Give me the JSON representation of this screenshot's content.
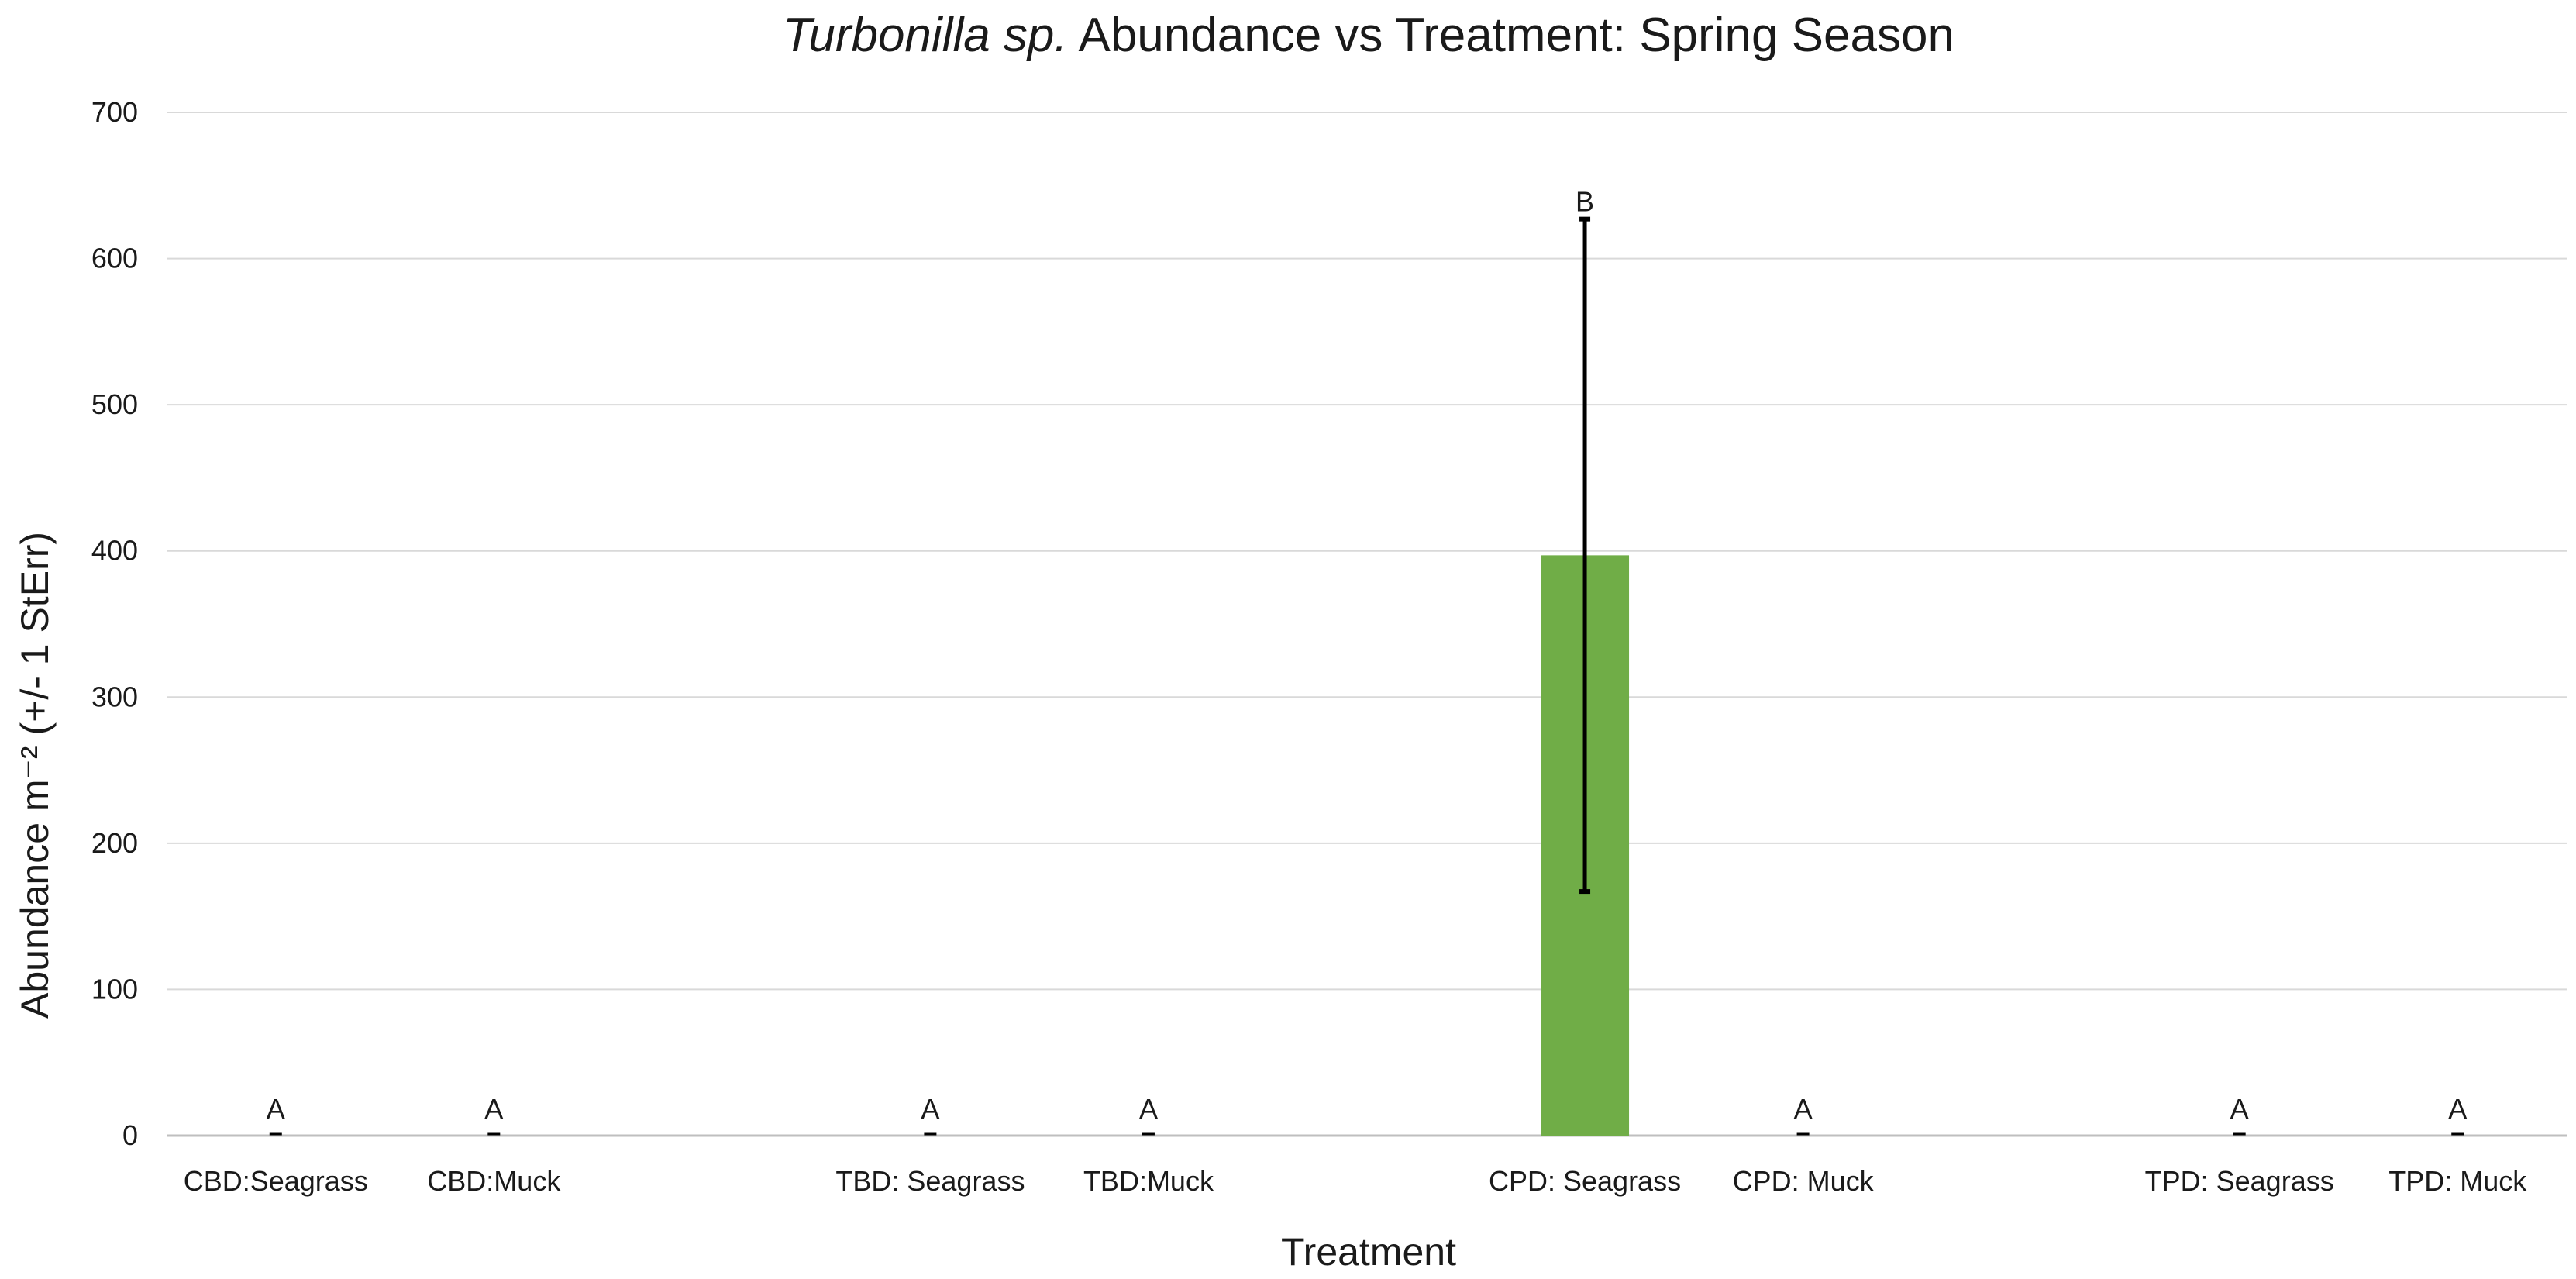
{
  "chart_data": {
    "type": "bar",
    "title": {
      "italic": "Turbonilla sp.",
      "rest": " Abundance vs Treatment: Spring Season"
    },
    "xlabel": "Treatment",
    "ylabel": "Abundance m⁻² (+/- 1 StErr)",
    "ylim": [
      0,
      700
    ],
    "yticks": [
      0,
      100,
      200,
      300,
      400,
      500,
      600,
      700
    ],
    "grid": true,
    "legend": "none",
    "bar_color": "#70ad47",
    "categories": [
      "CBD:Seagrass",
      "CBD:Muck",
      "",
      "TBD: Seagrass",
      "TBD:Muck",
      "",
      "CPD: Seagrass",
      "CPD: Muck",
      "",
      "TPD: Seagrass",
      "TPD: Muck"
    ],
    "values": [
      0,
      0,
      null,
      0,
      0,
      null,
      397,
      0,
      null,
      0,
      0
    ],
    "error": [
      0,
      0,
      null,
      0,
      0,
      null,
      230,
      0,
      null,
      0,
      0
    ],
    "letters": [
      "A",
      "A",
      "",
      "A",
      "A",
      "",
      "B",
      "A",
      "",
      "A",
      "A"
    ]
  }
}
